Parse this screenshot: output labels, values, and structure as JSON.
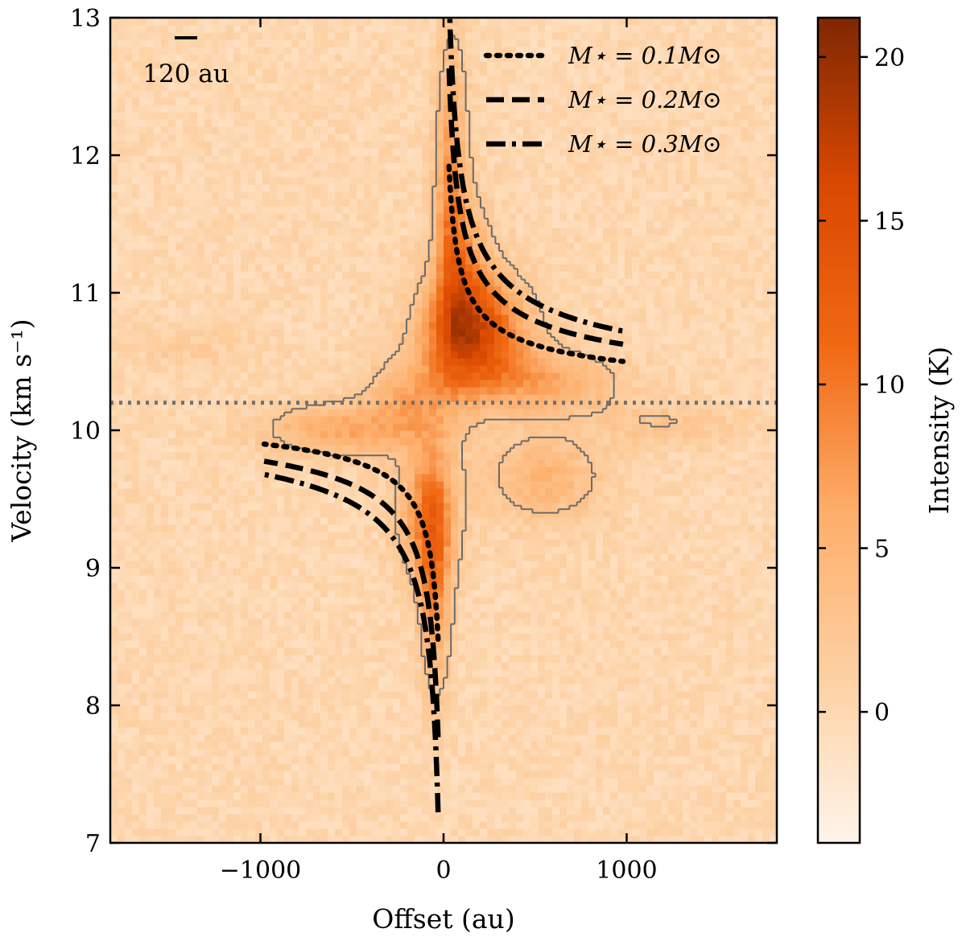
{
  "chart_data": {
    "type": "heatmap",
    "title": "",
    "xlabel": "Offset (au)",
    "ylabel": "Velocity (km s⁻¹)",
    "colorbar_label": "Intensity (K)",
    "xlim": [
      -1820,
      1820
    ],
    "ylim": [
      7,
      13
    ],
    "clim": [
      -4,
      21.2
    ],
    "colormap": "Oranges",
    "colormap_stops": [
      "#fff5eb",
      "#fdd0a2",
      "#fdae6b",
      "#f16913",
      "#d94801",
      "#7f2704"
    ],
    "x_ticks": [
      {
        "value": -1000,
        "label": "−1000"
      },
      {
        "value": 0,
        "label": "0"
      },
      {
        "value": 1000,
        "label": "1000"
      }
    ],
    "y_ticks": [
      {
        "value": 7,
        "label": "7"
      },
      {
        "value": 8,
        "label": "8"
      },
      {
        "value": 9,
        "label": "9"
      },
      {
        "value": 10,
        "label": "10"
      },
      {
        "value": 11,
        "label": "11"
      },
      {
        "value": 12,
        "label": "12"
      },
      {
        "value": 13,
        "label": "13"
      }
    ],
    "colorbar_ticks": [
      {
        "value": 0,
        "label": "0"
      },
      {
        "value": 5,
        "label": "5"
      },
      {
        "value": 10,
        "label": "10"
      },
      {
        "value": 15,
        "label": "15"
      },
      {
        "value": 20,
        "label": "20"
      }
    ],
    "systemic_velocity": 10.2,
    "emission_components": [
      {
        "name": "upper-ridge",
        "x": 40,
        "y": 11.8,
        "sx": 60,
        "sy": 0.7,
        "amp": 8
      },
      {
        "name": "upper-peak",
        "x": 170,
        "y": 10.7,
        "sx": 200,
        "sy": 0.28,
        "amp": 14
      },
      {
        "name": "upper-body",
        "x": 110,
        "y": 11.1,
        "sx": 110,
        "sy": 0.4,
        "amp": 7
      },
      {
        "name": "upper-wing",
        "x": 550,
        "y": 10.35,
        "sx": 280,
        "sy": 0.16,
        "amp": 6
      },
      {
        "name": "lower-ridge",
        "x": -50,
        "y": 8.9,
        "sx": 60,
        "sy": 0.55,
        "amp": 8
      },
      {
        "name": "lower-peak",
        "x": -90,
        "y": 9.4,
        "sx": 120,
        "sy": 0.35,
        "amp": 8
      },
      {
        "name": "left-wing",
        "x": -550,
        "y": 10.0,
        "sx": 300,
        "sy": 0.14,
        "amp": 6
      },
      {
        "name": "center-a",
        "x": -180,
        "y": 10.25,
        "sx": 180,
        "sy": 0.2,
        "amp": 5
      },
      {
        "name": "right-lower",
        "x": 550,
        "y": 9.65,
        "sx": 220,
        "sy": 0.22,
        "amp": 5
      },
      {
        "name": "right-far",
        "x": 1200,
        "y": 10.05,
        "sx": 300,
        "sy": 0.12,
        "amp": 2.5
      },
      {
        "name": "left-far",
        "x": -1400,
        "y": 10.6,
        "sx": 300,
        "sy": 0.1,
        "amp": 1.5
      }
    ],
    "series": [
      {
        "name": "M⋆ = 0.1M⊙",
        "mass": 0.1,
        "style": "dotted"
      },
      {
        "name": "M⋆ = 0.2M⊙",
        "mass": 0.2,
        "style": "dashed"
      },
      {
        "name": "M⋆ = 0.3M⊙",
        "mass": 0.3,
        "style": "dashdot"
      }
    ],
    "keplerian_curves": {
      "systemic_velocity": 10.2,
      "x_range_au": [
        30,
        980
      ]
    },
    "scale_bar": {
      "length_au": 120,
      "label": "120 au"
    },
    "legend": {
      "location": "upper right"
    },
    "contours": {
      "color": "#6b6b6b"
    }
  }
}
